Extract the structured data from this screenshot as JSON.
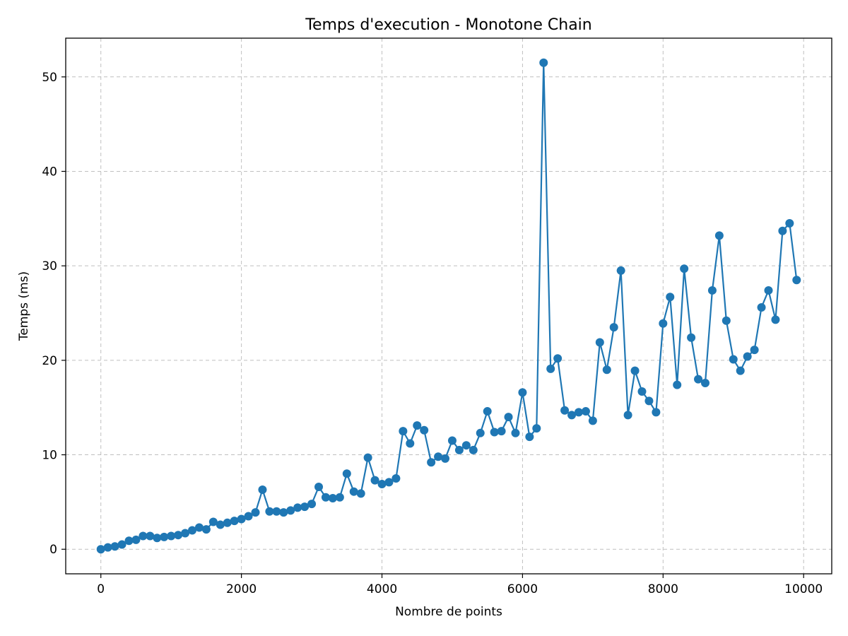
{
  "chart_data": {
    "type": "line",
    "title": "Temps d'execution - Monotone Chain",
    "xlabel": "Nombre de points",
    "ylabel": "Temps (ms)",
    "xlim": [
      -500,
      10400
    ],
    "ylim": [
      -2.6,
      54.1
    ],
    "xticks": [
      0,
      2000,
      4000,
      6000,
      8000,
      10000
    ],
    "yticks": [
      0,
      10,
      20,
      30,
      40,
      50
    ],
    "grid": true,
    "marker": "circle",
    "color": "#1f77b4",
    "series": [
      {
        "x": [
          0,
          100,
          200,
          300,
          400,
          500,
          600,
          700,
          800,
          900,
          1000,
          1100,
          1200,
          1300,
          1400,
          1500,
          1600,
          1700,
          1800,
          1900,
          2000,
          2100,
          2200,
          2300,
          2400,
          2500,
          2600,
          2700,
          2800,
          2900,
          3000,
          3100,
          3200,
          3300,
          3400,
          3500,
          3600,
          3700,
          3800,
          3900,
          4000,
          4100,
          4200,
          4300,
          4400,
          4500,
          4600,
          4700,
          4800,
          4900,
          5000,
          5100,
          5200,
          5300,
          5400,
          5500,
          5600,
          5700,
          5800,
          5900,
          6000,
          6100,
          6200,
          6300,
          6400,
          6500,
          6600,
          6700,
          6800,
          6900,
          7000,
          7100,
          7200,
          7300,
          7400,
          7500,
          7600,
          7700,
          7800,
          7900,
          8000,
          8100,
          8200,
          8300,
          8400,
          8500,
          8600,
          8700,
          8800,
          8900,
          9000,
          9100,
          9200,
          9300,
          9400,
          9500,
          9600,
          9700,
          9800,
          9900
        ],
        "y": [
          0.0,
          0.2,
          0.3,
          0.5,
          0.9,
          1.0,
          1.4,
          1.4,
          1.2,
          1.3,
          1.4,
          1.5,
          1.7,
          2.0,
          2.3,
          2.1,
          2.9,
          2.6,
          2.8,
          3.0,
          3.2,
          3.5,
          3.9,
          6.3,
          4.0,
          4.0,
          3.9,
          4.1,
          4.4,
          4.5,
          4.8,
          6.6,
          5.5,
          5.4,
          5.5,
          8.0,
          6.1,
          5.9,
          9.7,
          7.3,
          6.9,
          7.1,
          7.5,
          12.5,
          11.2,
          13.1,
          12.6,
          9.2,
          9.8,
          9.6,
          11.5,
          10.5,
          11.0,
          10.5,
          12.3,
          14.6,
          12.4,
          12.5,
          14.0,
          12.3,
          16.6,
          11.9,
          12.8,
          51.5,
          19.1,
          20.2,
          14.7,
          14.2,
          14.5,
          14.6,
          13.6,
          21.9,
          19.0,
          23.5,
          29.5,
          14.2,
          18.9,
          16.7,
          15.7,
          14.5,
          23.9,
          26.7,
          17.4,
          29.7,
          22.4,
          18.0,
          17.6,
          27.4,
          33.2,
          24.2,
          20.1,
          18.9,
          20.4,
          21.1,
          25.6,
          27.4,
          24.3,
          33.7,
          34.5,
          28.5
        ]
      }
    ]
  }
}
